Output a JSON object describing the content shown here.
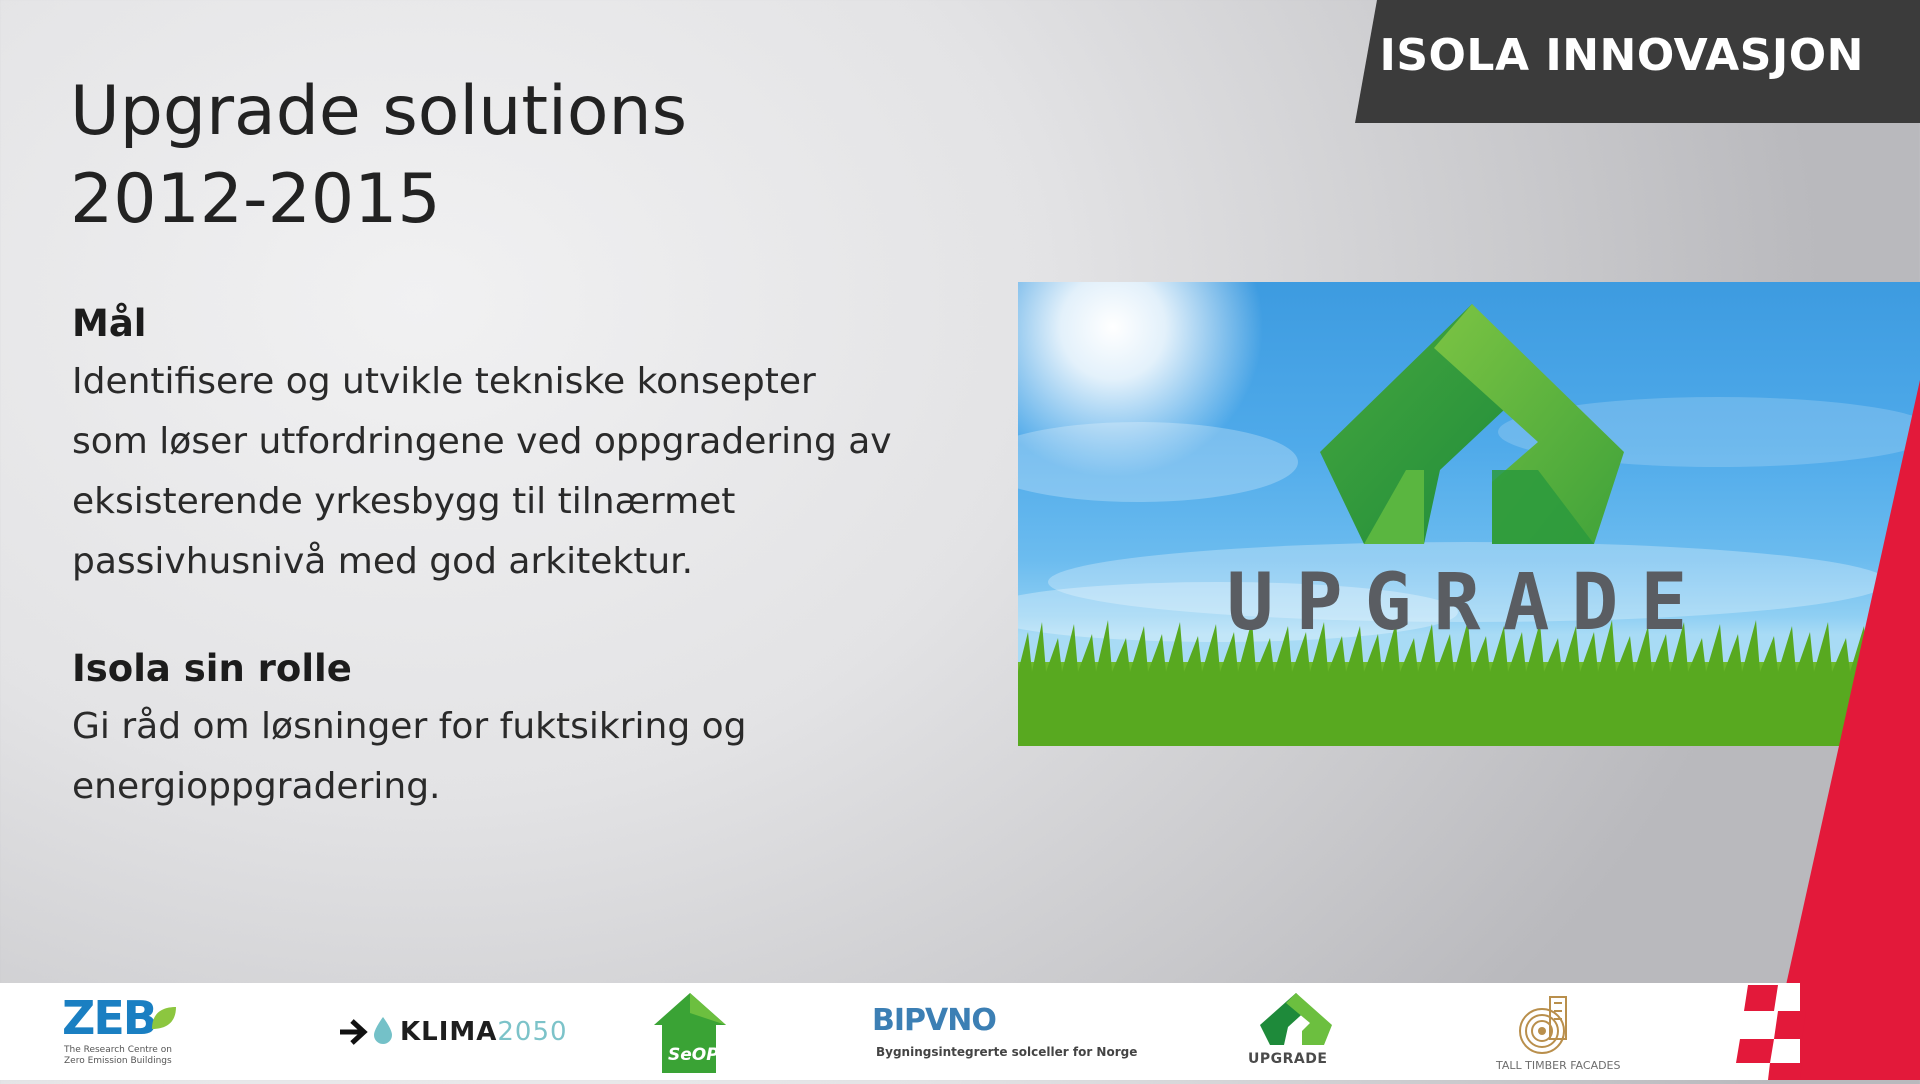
{
  "header": {
    "banner_text": "ISOLA INNOVASJON"
  },
  "title": {
    "line1": "Upgrade solutions",
    "line2": "2012-2015"
  },
  "goal": {
    "heading": "Mål",
    "lines": [
      "Identifisere og utvikle tekniske konsepter",
      "som løser utfordringene ved oppgradering av",
      "eksisterende yrkesbygg til tilnærmet",
      "passivhusnivå med god arkitektur."
    ]
  },
  "role": {
    "heading": "Isola sin rolle",
    "lines": [
      "Gi råd om løsninger for fuktsikring og",
      "energioppgradering."
    ]
  },
  "picture": {
    "wordmark": "UPGRADE"
  },
  "logos": {
    "zeb": {
      "mark": "ZEB",
      "subtitle_line1": "The Research Centre on",
      "subtitle_line2": "Zero Emission Buildings"
    },
    "klima": {
      "name": "KLIMA",
      "year": "2050"
    },
    "seopp": {
      "name": "SeOPP"
    },
    "bipvno": {
      "name": "BIPVNO",
      "subtitle": "Bygningsintegrerte solceller for Norge"
    },
    "upgrade": {
      "name": "UPGRADE"
    },
    "ttf": {
      "name": "TALL TIMBER FACADES"
    }
  },
  "colors": {
    "banner": "#3b3b3b",
    "accent_red": "#e3193a",
    "green_dark": "#1e8a3a",
    "green_light": "#6cbf3f",
    "sky": "#4faaea"
  }
}
